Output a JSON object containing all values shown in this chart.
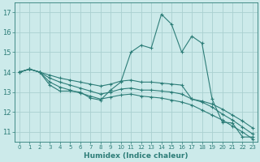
{
  "xlabel": "Humidex (Indice chaleur)",
  "ylabel": "",
  "bg_color": "#cceaea",
  "grid_color": "#aad0d0",
  "line_color": "#2d7d78",
  "xlim": [
    -0.5,
    23.5
  ],
  "ylim": [
    10.5,
    17.5
  ],
  "xticks": [
    0,
    1,
    2,
    3,
    4,
    5,
    6,
    7,
    8,
    9,
    10,
    11,
    12,
    13,
    14,
    15,
    16,
    17,
    18,
    19,
    20,
    21,
    22,
    23
  ],
  "yticks": [
    11,
    12,
    13,
    14,
    15,
    16,
    17
  ],
  "line1_jagged": {
    "x": [
      0,
      1,
      2,
      3,
      4,
      5,
      6,
      7,
      8,
      9,
      10,
      11,
      12,
      13,
      14,
      15,
      16,
      17,
      18,
      19,
      20,
      21,
      22,
      23
    ],
    "y": [
      14.0,
      14.15,
      14.0,
      13.35,
      13.05,
      13.05,
      13.0,
      12.7,
      12.6,
      13.1,
      13.5,
      15.0,
      15.35,
      15.2,
      16.9,
      16.4,
      15.0,
      15.8,
      15.45,
      12.65,
      11.5,
      11.45,
      10.75,
      10.75
    ]
  },
  "line2_upper": {
    "x": [
      0,
      1,
      2,
      3,
      4,
      5,
      6,
      7,
      8,
      9,
      10,
      11,
      12,
      13,
      14,
      15,
      16,
      17,
      18,
      19,
      20,
      21,
      22,
      23
    ],
    "y": [
      14.0,
      14.15,
      14.0,
      13.85,
      13.7,
      13.6,
      13.5,
      13.4,
      13.3,
      13.4,
      13.55,
      13.6,
      13.5,
      13.5,
      13.45,
      13.4,
      13.35,
      12.65,
      12.55,
      12.4,
      12.15,
      11.85,
      11.55,
      11.2
    ]
  },
  "line3_mid": {
    "x": [
      0,
      1,
      2,
      3,
      4,
      5,
      6,
      7,
      8,
      9,
      10,
      11,
      12,
      13,
      14,
      15,
      16,
      17,
      18,
      19,
      20,
      21,
      22,
      23
    ],
    "y": [
      14.0,
      14.15,
      14.0,
      13.7,
      13.5,
      13.35,
      13.2,
      13.05,
      12.9,
      13.0,
      13.15,
      13.2,
      13.1,
      13.1,
      13.05,
      13.0,
      12.9,
      12.65,
      12.5,
      12.25,
      11.9,
      11.6,
      11.25,
      10.9
    ]
  },
  "line4_lower": {
    "x": [
      0,
      1,
      2,
      3,
      4,
      5,
      6,
      7,
      8,
      9,
      10,
      11,
      12,
      13,
      14,
      15,
      16,
      17,
      18,
      19,
      20,
      21,
      22,
      23
    ],
    "y": [
      14.0,
      14.15,
      14.0,
      13.5,
      13.25,
      13.1,
      12.95,
      12.8,
      12.65,
      12.75,
      12.85,
      12.9,
      12.8,
      12.75,
      12.7,
      12.6,
      12.5,
      12.35,
      12.1,
      11.85,
      11.6,
      11.3,
      11.0,
      10.65
    ]
  }
}
